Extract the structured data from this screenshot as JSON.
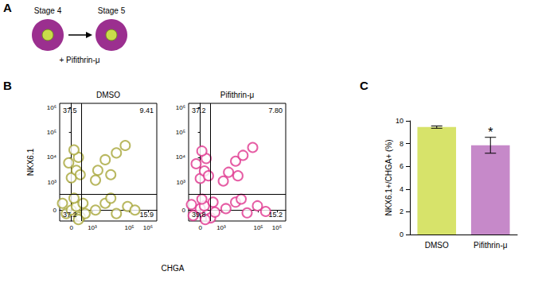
{
  "diagram": {
    "panel_label": "A",
    "from": "Stage 4",
    "to": "Stage 5",
    "treatment": "+ Pifithrin-μ"
  },
  "chart_data": [
    {
      "type": "scatter",
      "panel_label": "B",
      "xlabel": "CHGA",
      "ylabel": "NKX6.1",
      "log": true,
      "grid": false,
      "marker": "circle",
      "xlim": [
        -300,
        3000000
      ],
      "xticks": [
        0,
        {
          "value": 1000,
          "label": "10³"
        },
        {
          "value": 100000,
          "label": "10⁵"
        },
        {
          "value": 1000000,
          "label": "10⁶"
        }
      ],
      "ylim": [
        -180,
        1500000
      ],
      "yticks": [
        0,
        {
          "value": 1000,
          "label": "10³"
        },
        {
          "value": 10000,
          "label": "10⁴"
        },
        {
          "value": 100000,
          "label": "10⁵"
        },
        {
          "value": 1000000,
          "label": "10⁶"
        }
      ],
      "gates": {
        "x": 250,
        "y": 300
      },
      "plots": [
        {
          "title": "DMSO",
          "color": "#a8a63a",
          "quadrants": {
            "upper_left": 37.5,
            "upper_right": 9.41,
            "lower_left": 37.2,
            "lower_right": 15.9
          },
          "points": {
            "x": [
              -100,
              0,
              100,
              200,
              -200,
              50,
              300,
              400,
              150,
              0,
              100,
              -50,
              150,
              50,
              200,
              2000,
              5000,
              20000,
              60000,
              10000,
              1500,
              1500,
              5000,
              20000,
              80000,
              200000,
              10000
            ],
            "y": [
              -50,
              0,
              50,
              -100,
              100,
              200,
              100,
              -50,
              -150,
              1500,
              3000,
              6000,
              10000,
              20000,
              2000,
              3000,
              8000,
              15000,
              30000,
              2000,
              1200,
              0,
              100,
              -50,
              50,
              0,
              200
            ]
          }
        },
        {
          "title": "Pifithrin-μ",
          "color": "#e0368f",
          "quadrants": {
            "upper_left": 37.2,
            "upper_right": {
              "value": 7.8,
              "label": "7.80"
            },
            "lower_left": 39.8,
            "lower_right": 15.2
          },
          "points": {
            "x": [
              -150,
              0,
              80,
              250,
              -200,
              30,
              350,
              450,
              100,
              0,
              80,
              -80,
              120,
              30,
              180,
              2500,
              6000,
              15000,
              50000,
              8000,
              1300,
              1800,
              6000,
              25000,
              90000,
              250000,
              12000
            ],
            "y": [
              -80,
              20,
              60,
              -120,
              80,
              180,
              120,
              -30,
              -150,
              1400,
              2800,
              5500,
              9000,
              18000,
              1800,
              2500,
              7000,
              12000,
              25000,
              1800,
              1100,
              20,
              120,
              -40,
              60,
              -20,
              180
            ]
          }
        }
      ]
    },
    {
      "type": "bar",
      "panel_label": "C",
      "ylabel": "NKX6.1+/CHGA+ (%)",
      "categories": [
        "DMSO",
        "Pifithrin-μ"
      ],
      "values": [
        9.45,
        7.85
      ],
      "errors": [
        0.1,
        0.7
      ],
      "colors": [
        "#d7e36a",
        "#c689c9"
      ],
      "ylim": [
        0,
        10
      ],
      "yticks": [
        0,
        2,
        4,
        6,
        8,
        10
      ],
      "grid": false,
      "annotations": [
        {
          "text": "*",
          "category": "Pifithrin-μ"
        }
      ]
    }
  ]
}
